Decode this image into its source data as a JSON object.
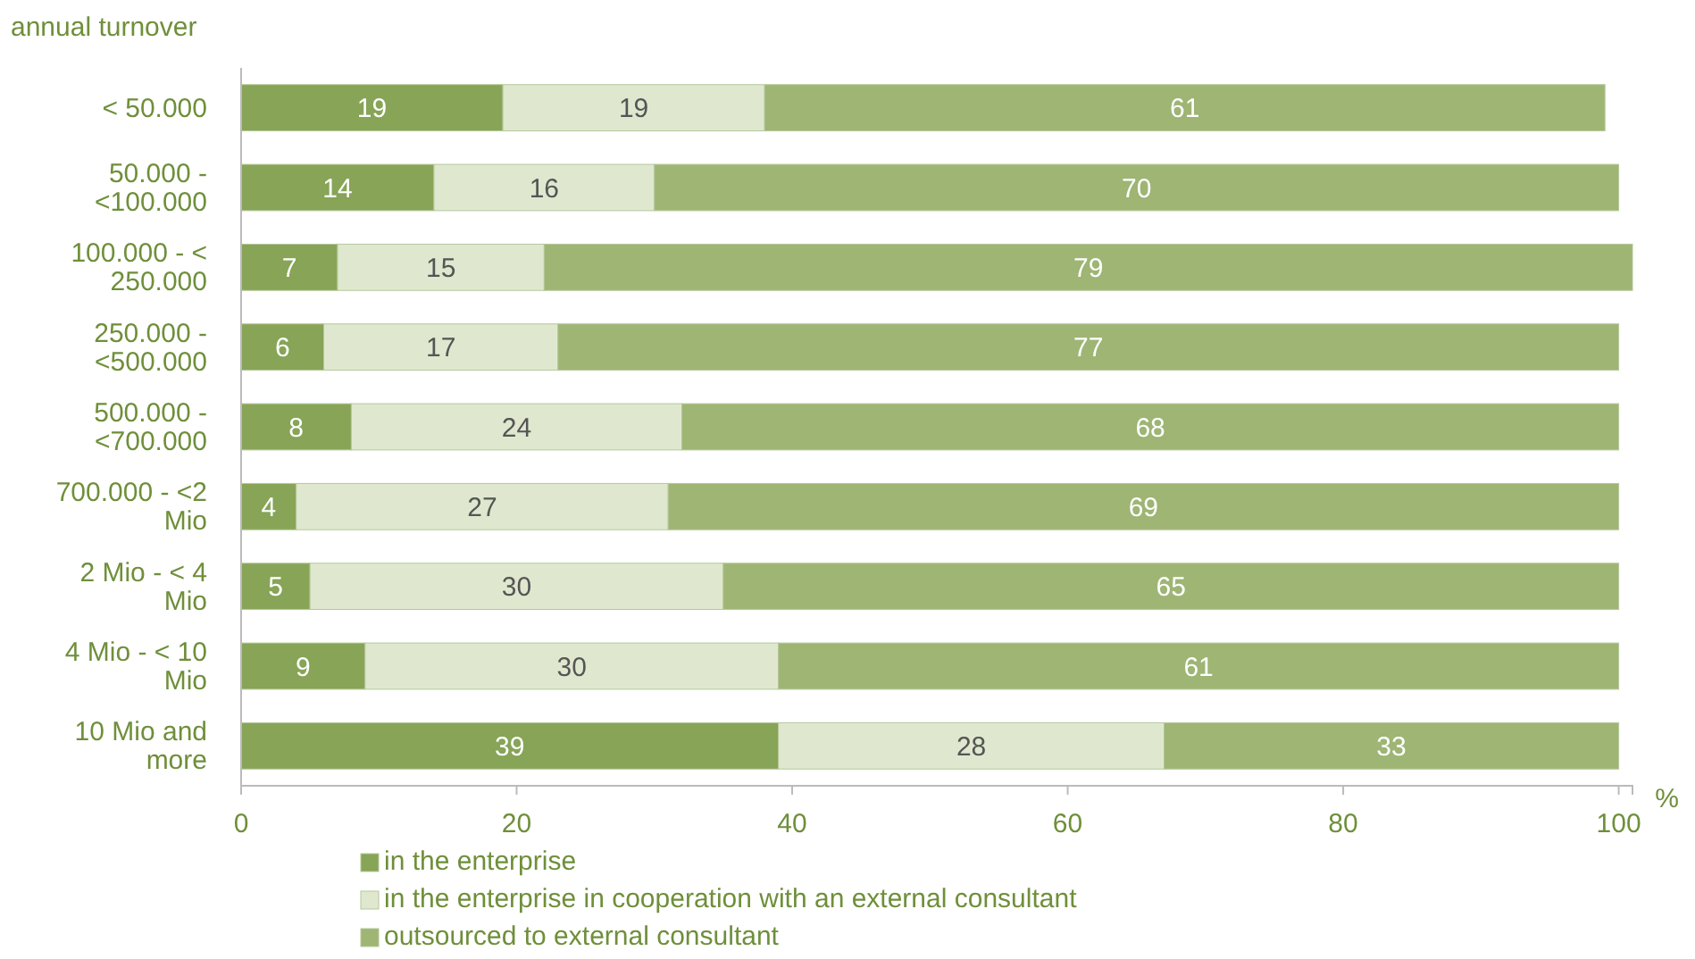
{
  "chart_data": {
    "type": "bar",
    "orientation": "horizontal",
    "stacked": true,
    "data_labels": true,
    "legend": "bottom",
    "grid": false,
    "ylabel": "annual turnover",
    "xlabel": "%",
    "categories": [
      "< 50.000",
      "50.000 - <100.000",
      "100.000 - < 250.000",
      "250.000 - <500.000",
      "500.000 - <700.000",
      "700.000 - <2 Mio",
      "2 Mio - < 4 Mio",
      "4 Mio - < 10 Mio",
      "10 Mio and more"
    ],
    "xlim": [
      0,
      101
    ],
    "xticks": [
      0,
      20,
      40,
      60,
      80,
      100
    ],
    "series": [
      {
        "name": "in the enterprise",
        "color": "#87a457",
        "values": [
          19,
          14,
          7,
          6,
          8,
          4,
          5,
          9,
          39
        ]
      },
      {
        "name": "in the enterprise in cooperation with an external consultant",
        "color": "#dfe8cf",
        "values": [
          19,
          16,
          15,
          17,
          24,
          27,
          30,
          30,
          28
        ]
      },
      {
        "name": "outsourced to external consultant",
        "color": "#9eb574",
        "values": [
          61,
          70,
          79,
          77,
          68,
          69,
          65,
          61,
          33
        ]
      }
    ]
  }
}
